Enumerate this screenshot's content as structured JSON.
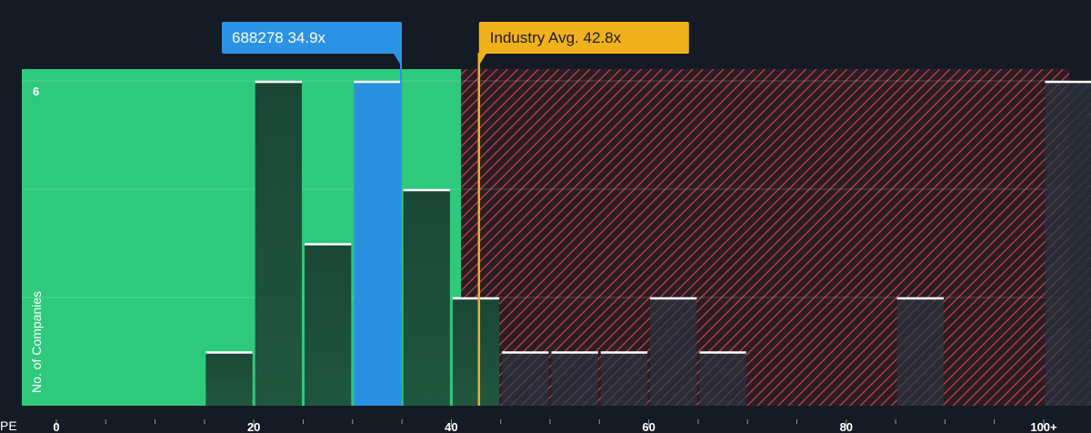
{
  "chart_data": {
    "type": "bar",
    "x_axis_label": "PE",
    "y_axis_label": "No. of Companies",
    "x_tick_labels": [
      {
        "value": 0,
        "label": "0"
      },
      {
        "value": 20,
        "label": "20"
      },
      {
        "value": 40,
        "label": "40"
      },
      {
        "value": 60,
        "label": "60"
      },
      {
        "value": 80,
        "label": "80"
      },
      {
        "value": 100,
        "label": "100+"
      }
    ],
    "y_tick_labels": [
      {
        "value": 6,
        "label": "6"
      }
    ],
    "xlim": [
      0,
      102.5
    ],
    "ylim": [
      0,
      6.25
    ],
    "bin_width": 5,
    "bins": [
      {
        "start": 15,
        "count": 1
      },
      {
        "start": 20,
        "count": 6
      },
      {
        "start": 25,
        "count": 3
      },
      {
        "start": 30,
        "count": 6,
        "highlight": true
      },
      {
        "start": 35,
        "count": 4
      },
      {
        "start": 40,
        "count": 2
      },
      {
        "start": 45,
        "count": 1
      },
      {
        "start": 50,
        "count": 1
      },
      {
        "start": 55,
        "count": 1
      },
      {
        "start": 60,
        "count": 2
      },
      {
        "start": 65,
        "count": 1
      },
      {
        "start": 85,
        "count": 2
      },
      {
        "start": 100,
        "count": 6
      }
    ],
    "company_marker": {
      "label": "688278 34.9x",
      "value": 34.9
    },
    "industry_marker": {
      "label": "Industry Avg. 42.8x",
      "value": 42.8
    },
    "undervalued_threshold": 41,
    "colors": {
      "background": "#151b24",
      "green_zone": "#2ec97c",
      "red_hatch": "#e0424f",
      "bar_dark": "#1d4a3a",
      "bar_highlight": "#2a91e0",
      "company_marker": "#2b93e6",
      "industry_marker": "#f0b11a"
    }
  }
}
